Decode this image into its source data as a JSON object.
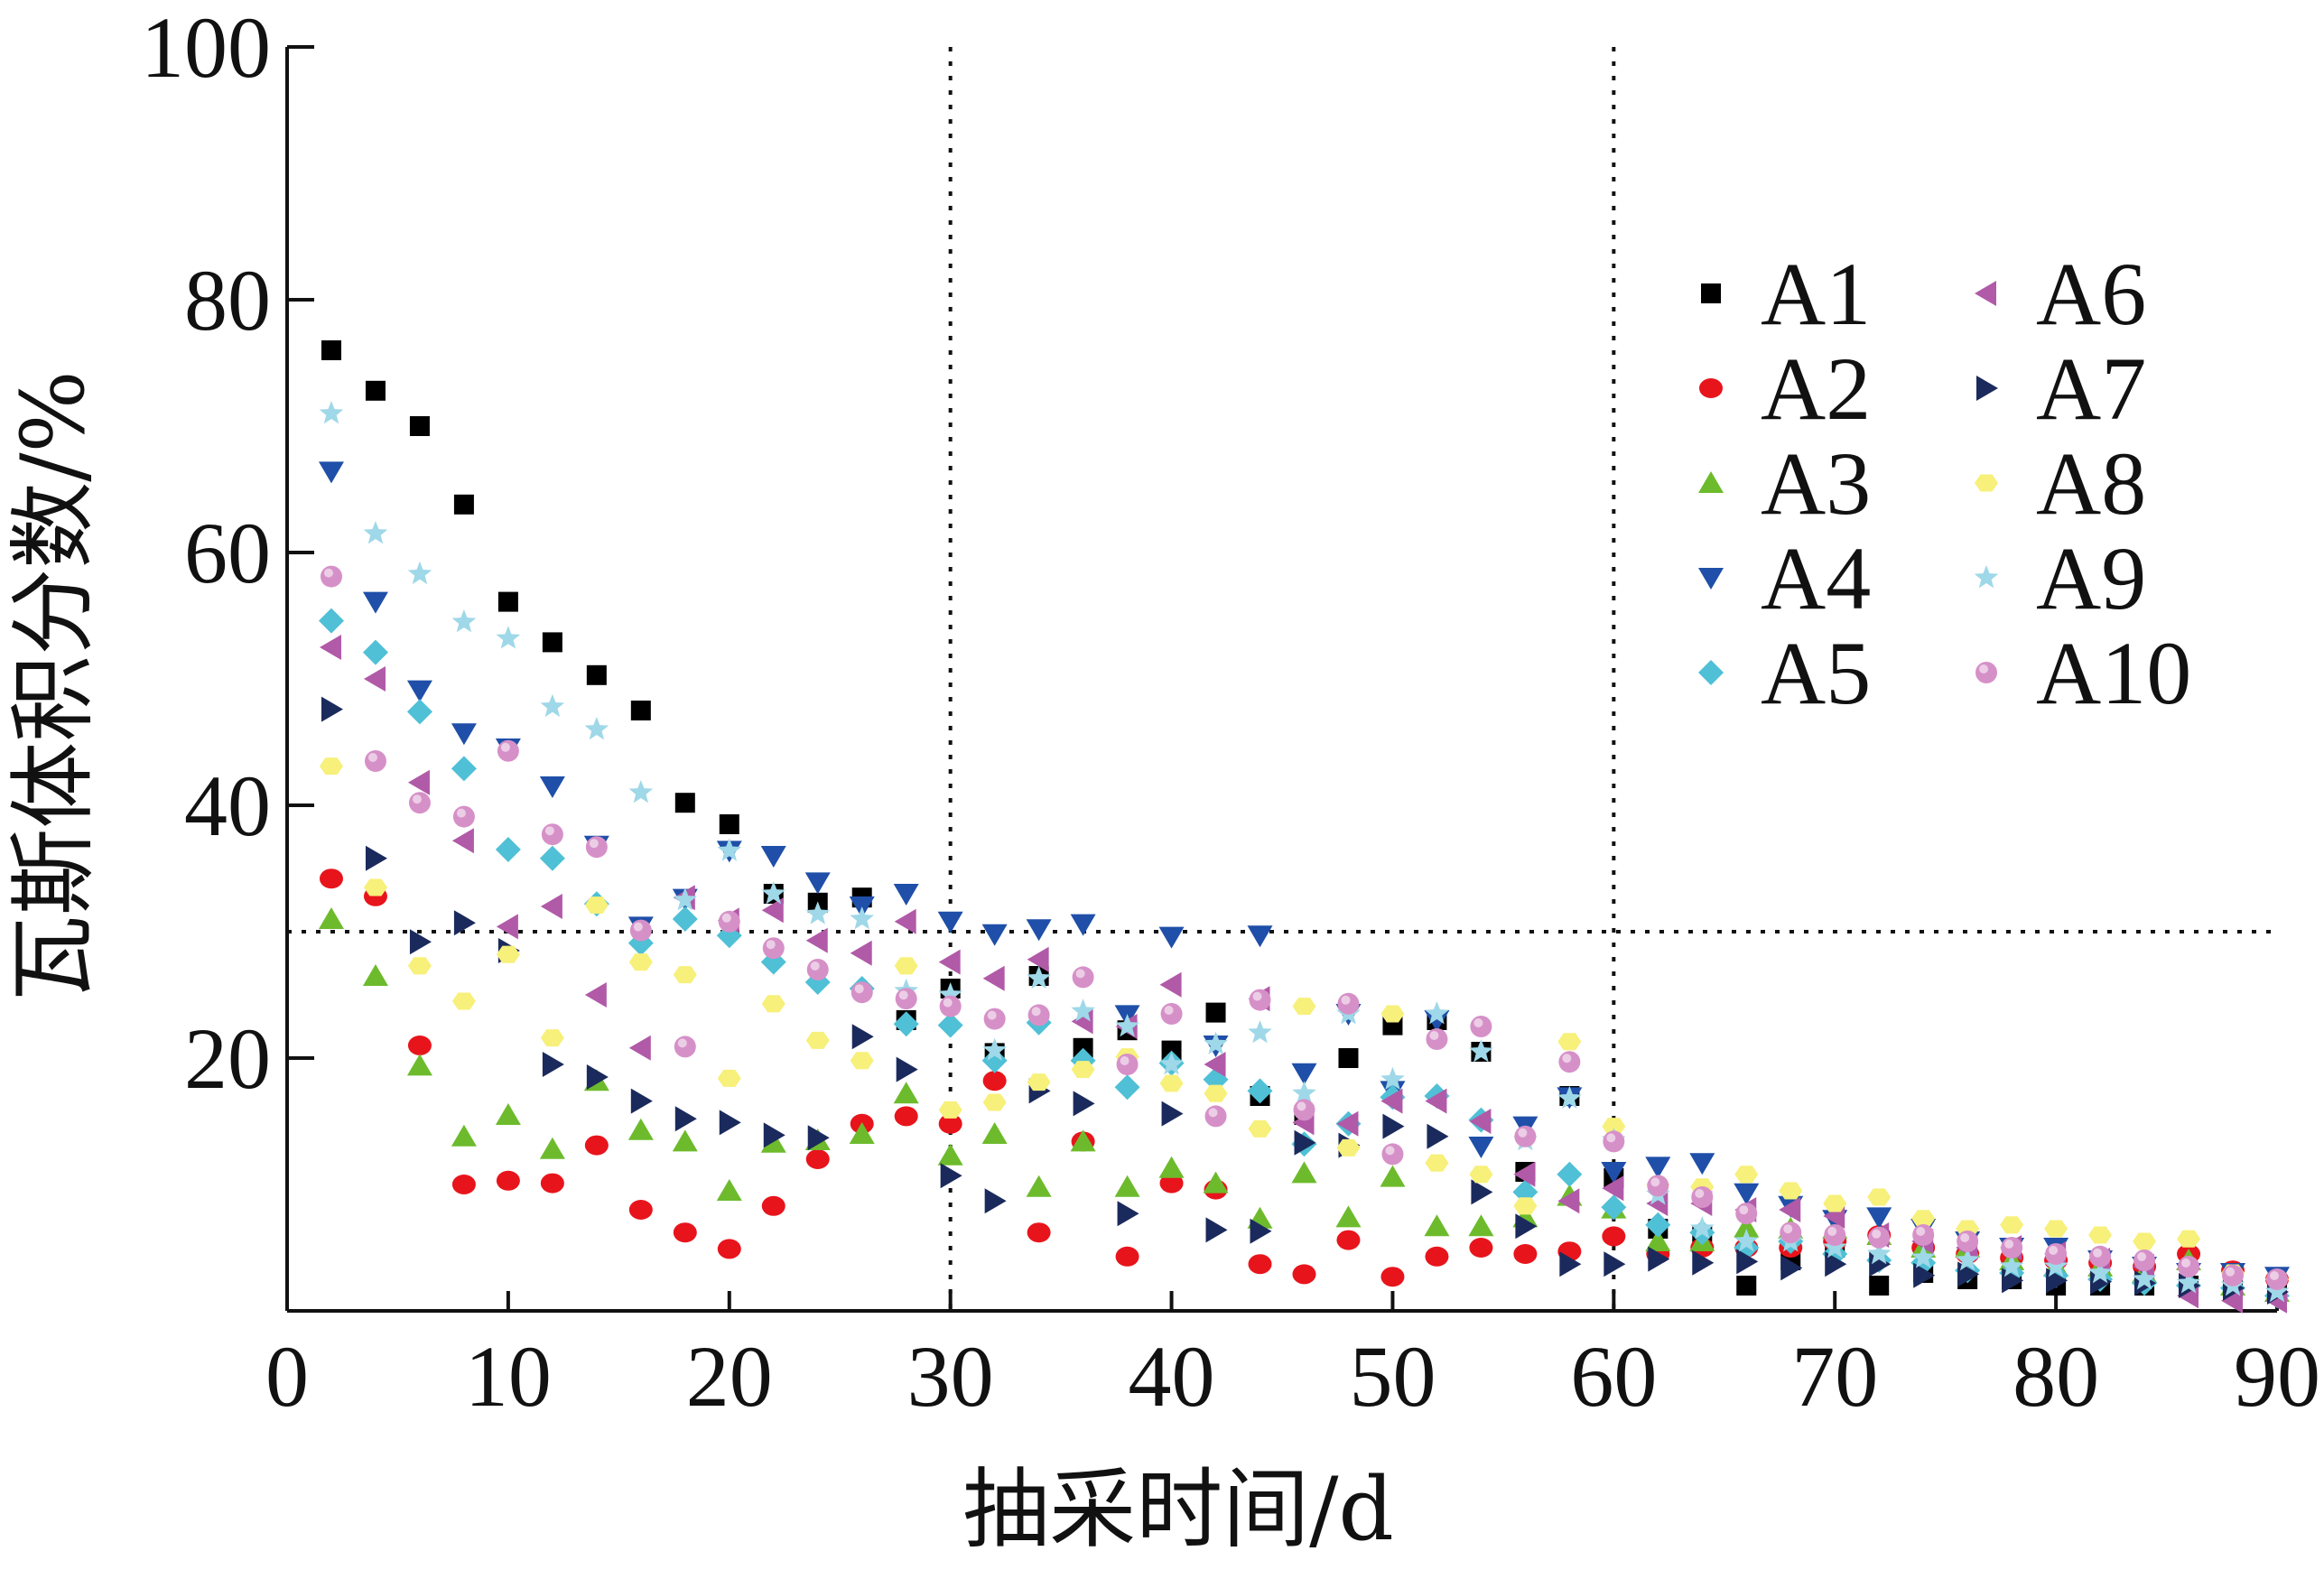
{
  "chart_data": {
    "type": "scatter",
    "title": "",
    "xlabel": "抽采时间/d",
    "ylabel": "瓦斯体积分数/%",
    "xlim": [
      0,
      90
    ],
    "ylim": [
      0,
      100
    ],
    "x_ticks": [
      "0",
      "10",
      "20",
      "30",
      "40",
      "50",
      "60",
      "70",
      "80",
      "90"
    ],
    "y_ticks": [
      "20",
      "40",
      "60",
      "80",
      "100"
    ],
    "reference_lines": {
      "x": [
        30,
        60
      ],
      "y": [
        30
      ]
    },
    "legend_position": "top-right",
    "series": [
      {
        "name": "A1",
        "marker": "square",
        "color": "#000000",
        "x": [
          2,
          4,
          6,
          8,
          10,
          12,
          14,
          16,
          18,
          20,
          22,
          24,
          26,
          28,
          30,
          32,
          34,
          36,
          38,
          40,
          42,
          44,
          46,
          48,
          50,
          52,
          54,
          56,
          58,
          60,
          62,
          64,
          66,
          68,
          70,
          72,
          74,
          76,
          78,
          80,
          82,
          84,
          86,
          88,
          90
        ],
        "y": [
          76,
          72.8,
          70,
          63.8,
          56.1,
          52.9,
          50.3,
          47.5,
          40.2,
          38.5,
          33,
          32.3,
          32.7,
          23,
          25.5,
          20.4,
          26.5,
          20.8,
          22.2,
          20.6,
          23.6,
          17,
          15.5,
          20,
          22.6,
          23,
          20.5,
          11,
          17,
          10.5,
          6.5,
          6,
          2,
          4,
          5,
          2,
          3,
          2.5,
          2.5,
          2,
          2,
          2,
          2,
          2,
          2
        ]
      },
      {
        "name": "A2",
        "marker": "circle",
        "color": "#e8141c",
        "x": [
          2,
          4,
          6,
          8,
          10,
          12,
          14,
          16,
          18,
          20,
          22,
          24,
          26,
          28,
          30,
          32,
          34,
          36,
          38,
          40,
          42,
          44,
          46,
          48,
          50,
          52,
          54,
          56,
          58,
          60,
          62,
          64,
          66,
          68,
          70,
          72,
          74,
          76,
          78,
          80,
          82,
          84,
          86,
          88,
          90
        ],
        "y": [
          34.2,
          32.8,
          21,
          10,
          10.3,
          10.1,
          13.1,
          8,
          6.2,
          4.9,
          8.3,
          12,
          14.8,
          15.4,
          14.8,
          18.2,
          6.2,
          13.4,
          4.3,
          10.1,
          9.6,
          3.7,
          2.9,
          5.6,
          2.7,
          4.3,
          5,
          4.5,
          4.7,
          5.9,
          4.5,
          5,
          5,
          5,
          5.5,
          6,
          5,
          4.5,
          4.2,
          4,
          3.8,
          3.5,
          4.5,
          3.2,
          2.5
        ]
      },
      {
        "name": "A3",
        "marker": "triangle-up",
        "color": "#6dbb2c",
        "x": [
          2,
          4,
          6,
          8,
          10,
          12,
          14,
          16,
          18,
          20,
          22,
          24,
          26,
          28,
          30,
          32,
          34,
          36,
          38,
          40,
          42,
          44,
          46,
          48,
          50,
          52,
          54,
          56,
          58,
          60,
          62,
          64,
          66,
          68,
          70,
          72,
          74,
          76,
          78,
          80,
          82,
          84,
          86,
          88,
          90
        ],
        "y": [
          31,
          26.5,
          19.4,
          13.8,
          15.5,
          12.8,
          18.2,
          14.3,
          13.4,
          9.5,
          13.3,
          13.5,
          14,
          17.2,
          12.3,
          14,
          9.8,
          13.4,
          9.8,
          11.3,
          10.1,
          7.3,
          10.9,
          7.4,
          10.6,
          6.7,
          6.7,
          7.4,
          9.1,
          8.1,
          5.5,
          5.5,
          6.6,
          6.5,
          6.5,
          6,
          5,
          5,
          4,
          3.5,
          3.5,
          3,
          4,
          2,
          1.5
        ]
      },
      {
        "name": "A4",
        "marker": "triangle-down",
        "color": "#1f4fa8",
        "x": [
          2,
          4,
          6,
          8,
          10,
          12,
          14,
          16,
          18,
          20,
          22,
          24,
          26,
          28,
          30,
          32,
          34,
          36,
          38,
          40,
          42,
          44,
          46,
          48,
          50,
          52,
          54,
          56,
          58,
          60,
          62,
          64,
          66,
          68,
          70,
          72,
          74,
          76,
          78,
          80,
          82,
          84,
          86,
          88,
          90
        ],
        "y": [
          66.4,
          56.1,
          49.1,
          45.7,
          44.5,
          41.5,
          36.8,
          30.4,
          32.6,
          36.4,
          36,
          33.9,
          32,
          33,
          30.8,
          29.8,
          30.2,
          30.6,
          23.4,
          29.6,
          21,
          29.7,
          18.8,
          23.5,
          17.4,
          23,
          13,
          14.6,
          16.9,
          11,
          11.4,
          11.7,
          9.3,
          8.3,
          7.2,
          7.4,
          6.5,
          5.5,
          5,
          5,
          4,
          3.5,
          3,
          3,
          2.7
        ]
      },
      {
        "name": "A5",
        "marker": "diamond",
        "color": "#4fc0d6",
        "x": [
          2,
          4,
          6,
          8,
          10,
          12,
          14,
          16,
          18,
          20,
          22,
          24,
          26,
          28,
          30,
          32,
          34,
          36,
          38,
          40,
          42,
          44,
          46,
          48,
          50,
          52,
          54,
          56,
          58,
          60,
          62,
          64,
          66,
          68,
          70,
          72,
          74,
          76,
          78,
          80,
          82,
          84,
          86,
          88,
          90
        ],
        "y": [
          54.6,
          52.1,
          47.4,
          42.9,
          36.5,
          35.8,
          32.2,
          29.1,
          31,
          29.7,
          27.6,
          26,
          25.5,
          22.7,
          22.6,
          19.8,
          22.8,
          19.8,
          17.7,
          19.6,
          18.3,
          17.4,
          13.2,
          14.8,
          16.9,
          17,
          15.1,
          9.4,
          10.8,
          8.2,
          6.8,
          6.2,
          5,
          5.5,
          4.5,
          4,
          3.8,
          3.2,
          3,
          2.8,
          2.5,
          2.2,
          2,
          1.8,
          1.2
        ]
      },
      {
        "name": "A6",
        "marker": "triangle-left",
        "color": "#b15aa8",
        "x": [
          2,
          4,
          6,
          8,
          10,
          12,
          14,
          16,
          18,
          20,
          22,
          24,
          26,
          28,
          30,
          32,
          34,
          36,
          38,
          40,
          42,
          44,
          46,
          48,
          50,
          52,
          54,
          56,
          58,
          60,
          62,
          64,
          66,
          68,
          70,
          72,
          74,
          76,
          78,
          80,
          82,
          84,
          86,
          88,
          90
        ],
        "y": [
          52.5,
          50,
          41.8,
          37.2,
          30.4,
          32,
          25,
          20.8,
          32.7,
          30.9,
          31.7,
          29.3,
          28.3,
          30.8,
          27.6,
          26.3,
          27.8,
          22.9,
          22.5,
          25.8,
          19.5,
          24.7,
          14.9,
          14.8,
          16.6,
          16.6,
          15,
          10.8,
          8.7,
          9.7,
          8.5,
          8.5,
          8,
          8,
          7.5,
          6,
          5.5,
          5,
          5,
          4.5,
          4,
          3.5,
          1.2,
          0.8,
          0.8
        ]
      },
      {
        "name": "A7",
        "marker": "triangle-right",
        "color": "#1b2a5c",
        "x": [
          2,
          4,
          6,
          8,
          10,
          12,
          14,
          16,
          18,
          20,
          22,
          24,
          26,
          28,
          30,
          32,
          34,
          36,
          38,
          40,
          42,
          44,
          46,
          48,
          50,
          52,
          54,
          56,
          58,
          60,
          62,
          64,
          66,
          68,
          70,
          72,
          74,
          76,
          78,
          80,
          82,
          84,
          86,
          88,
          90
        ],
        "y": [
          47.6,
          35.8,
          29.2,
          30.7,
          28.5,
          19.5,
          18.5,
          16.6,
          15.2,
          14.9,
          13.9,
          13.7,
          21.7,
          19.1,
          10.7,
          8.7,
          17.4,
          16.4,
          7.7,
          15.6,
          6.4,
          6.3,
          13.3,
          13.1,
          14.6,
          13.8,
          9.4,
          6.7,
          3.7,
          3.7,
          4.1,
          3.8,
          3.9,
          3.4,
          3.7,
          3.7,
          2.8,
          2.9,
          2.4,
          2.4,
          2.3,
          2.2,
          2,
          1.8,
          1.5
        ]
      },
      {
        "name": "A8",
        "marker": "hexagon",
        "color": "#f7f07a",
        "x": [
          2,
          4,
          6,
          8,
          10,
          12,
          14,
          16,
          18,
          20,
          22,
          24,
          26,
          28,
          30,
          32,
          34,
          36,
          38,
          40,
          42,
          44,
          46,
          48,
          50,
          52,
          54,
          56,
          58,
          60,
          62,
          64,
          66,
          68,
          70,
          72,
          74,
          76,
          78,
          80,
          82,
          84,
          86,
          88,
          90
        ],
        "y": [
          43.1,
          33.5,
          27.3,
          24.5,
          28.2,
          21.6,
          32.1,
          27.6,
          26.6,
          18.4,
          24.3,
          21.4,
          19.8,
          27.3,
          15.9,
          16.5,
          18.1,
          19.1,
          20.1,
          18,
          17.2,
          14.4,
          24.1,
          12.9,
          23.5,
          11.7,
          10.8,
          8.3,
          21.3,
          14.6,
          10,
          9.8,
          10.8,
          9.5,
          8.5,
          9,
          7.3,
          6.5,
          6.8,
          6.5,
          6,
          5.5,
          5.7,
          3,
          2.5
        ]
      },
      {
        "name": "A9",
        "marker": "star",
        "color": "#9fd8e8",
        "x": [
          2,
          4,
          6,
          8,
          10,
          12,
          14,
          16,
          18,
          20,
          22,
          24,
          26,
          28,
          30,
          32,
          34,
          36,
          38,
          40,
          42,
          44,
          46,
          48,
          50,
          52,
          54,
          56,
          58,
          60,
          62,
          64,
          66,
          68,
          70,
          72,
          74,
          76,
          78,
          80,
          82,
          84,
          86,
          88,
          90
        ],
        "y": [
          71,
          61.5,
          58.3,
          54.5,
          53.2,
          47.8,
          46,
          41,
          32.5,
          36.4,
          33,
          31.4,
          31,
          25.3,
          25,
          20.6,
          26.3,
          23.7,
          22.5,
          19.5,
          21.1,
          22,
          17.2,
          23.5,
          18.3,
          23.5,
          20.5,
          13.5,
          16.8,
          13.5,
          9.2,
          6.5,
          5.5,
          5.5,
          5,
          4.5,
          4.2,
          4,
          3.5,
          3.5,
          3,
          2.5,
          2.2,
          2,
          1.5
        ]
      },
      {
        "name": "A10",
        "marker": "sphere",
        "color": "#d690c8",
        "x": [
          2,
          4,
          6,
          8,
          10,
          12,
          14,
          16,
          18,
          20,
          22,
          24,
          26,
          28,
          30,
          32,
          34,
          36,
          38,
          40,
          42,
          44,
          46,
          48,
          50,
          52,
          54,
          56,
          58,
          60,
          62,
          64,
          66,
          68,
          70,
          72,
          74,
          76,
          78,
          80,
          82,
          84,
          86,
          88,
          90
        ],
        "y": [
          58.1,
          43.5,
          40.2,
          39.1,
          44.3,
          37.7,
          36.7,
          30.1,
          20.9,
          30.8,
          28.7,
          27,
          25.2,
          24.7,
          24.1,
          23.1,
          23.4,
          26.4,
          19.5,
          23.5,
          15.4,
          24.6,
          15.9,
          24.3,
          12.4,
          21.5,
          22.5,
          13.8,
          19.7,
          13.4,
          9.9,
          9,
          7.7,
          6.2,
          6,
          5.8,
          6,
          5.5,
          5,
          4.5,
          4.3,
          4,
          3.5,
          2.8,
          2.5
        ]
      }
    ]
  }
}
